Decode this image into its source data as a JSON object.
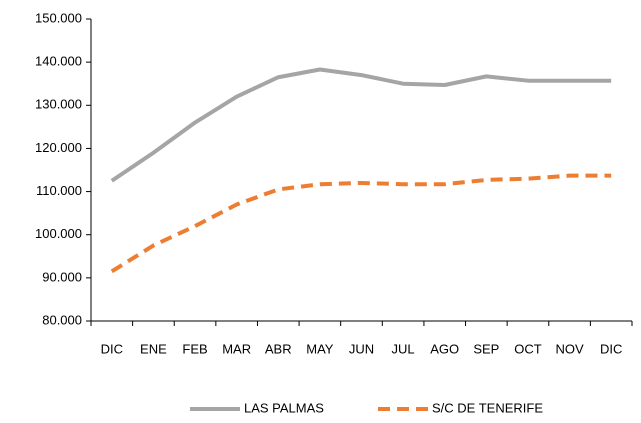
{
  "chart_data": {
    "type": "line",
    "categories": [
      "DIC",
      "ENE",
      "FEB",
      "MAR",
      "ABR",
      "MAY",
      "JUN",
      "JUL",
      "AGO",
      "SEP",
      "OCT",
      "NOV",
      "DIC"
    ],
    "series": [
      {
        "name": "LAS PALMAS",
        "color": "#a5a5a5",
        "dash": false,
        "values": [
          112500,
          119000,
          126000,
          132000,
          136500,
          138300,
          137000,
          135000,
          134700,
          136700,
          135700,
          135700,
          135700
        ]
      },
      {
        "name": "S/C DE TENERIFE",
        "color": "#ed7d31",
        "dash": true,
        "values": [
          91500,
          97500,
          102000,
          107000,
          110500,
          111700,
          112000,
          111700,
          111700,
          112700,
          113000,
          113700,
          113700
        ]
      }
    ],
    "ylim": [
      80000,
      150000
    ],
    "yticks": [
      {
        "value": 80000,
        "label": "80.000"
      },
      {
        "value": 90000,
        "label": "90.000"
      },
      {
        "value": 100000,
        "label": "100.000"
      },
      {
        "value": 110000,
        "label": "110.000"
      },
      {
        "value": 120000,
        "label": "120.000"
      },
      {
        "value": 130000,
        "label": "130.000"
      },
      {
        "value": 140000,
        "label": "140.000"
      },
      {
        "value": 150000,
        "label": "150.000"
      }
    ],
    "grid": false,
    "legend": "bottom"
  }
}
